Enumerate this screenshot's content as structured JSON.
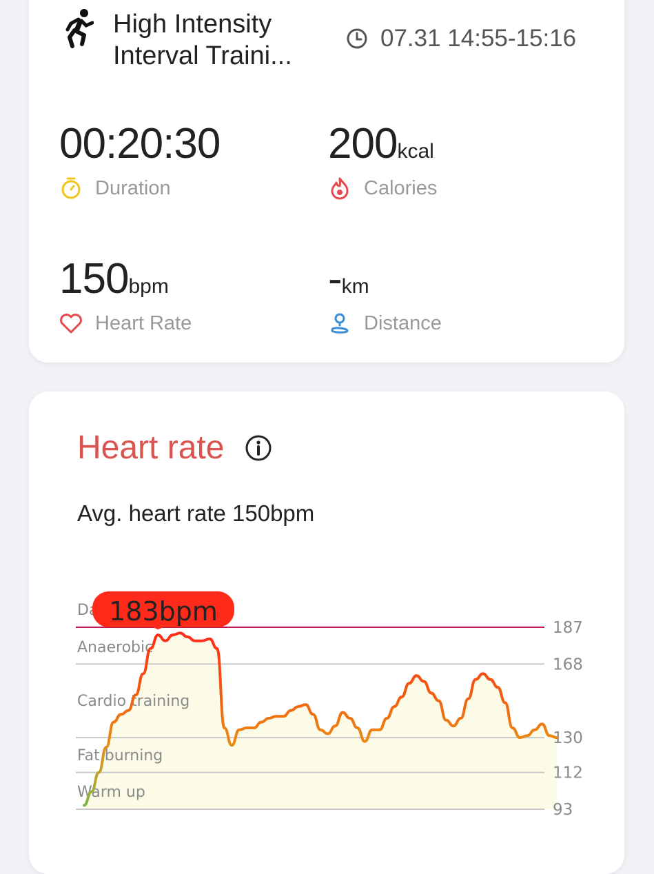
{
  "workout": {
    "icon": "running-person-icon",
    "title": "High Intensity Interval Traini...",
    "time_range": "07.31 14:55-15:16"
  },
  "stats": {
    "duration": {
      "value": "00:20:30",
      "unit": "",
      "label": "Duration"
    },
    "calories": {
      "value": "200",
      "unit": "kcal",
      "label": "Calories"
    },
    "heart_rate": {
      "value": "150",
      "unit": "bpm",
      "label": "Heart Rate"
    },
    "distance": {
      "value": "-",
      "unit": "km",
      "label": "Distance"
    }
  },
  "heart_rate_card": {
    "title": "Heart rate",
    "avg_text": "Avg. heart rate 150bpm",
    "peak_label": "183bpm"
  },
  "colors": {
    "title_red": "#d9534f",
    "danger_line": "#c2185b",
    "bubble": "#ff2a1a",
    "duration_icon": "#f0c419",
    "calories_icon": "#e5484d",
    "heart_icon": "#e5484d",
    "distance_icon": "#3b8ed8"
  },
  "chart_data": {
    "type": "line",
    "ylabel": "",
    "zones": [
      "Dangerous",
      "Anaerobic",
      "Cardio training",
      "Fat burning",
      "Warm up"
    ],
    "y_ticks": [
      187,
      168,
      130,
      112,
      93
    ],
    "ylim": [
      89,
      196
    ],
    "x": [
      0,
      1,
      2,
      3,
      4,
      5,
      6,
      7,
      8,
      9,
      10,
      11,
      12,
      13,
      14,
      15,
      16,
      17,
      18,
      19,
      20,
      21,
      22,
      23,
      24,
      25,
      26,
      27,
      28,
      29,
      30,
      31,
      32,
      33,
      34,
      35,
      36,
      37,
      38,
      39,
      40,
      41,
      42,
      43,
      44,
      45,
      46,
      47,
      48,
      49,
      50,
      51,
      52,
      53,
      54,
      55,
      56,
      57,
      58,
      59,
      60,
      61,
      62,
      63,
      64
    ],
    "values": [
      95,
      102,
      112,
      125,
      138,
      142,
      144,
      152,
      163,
      176,
      183,
      180,
      183,
      184,
      182,
      180,
      180,
      181,
      176,
      135,
      126,
      134,
      135,
      135,
      138,
      140,
      141,
      141,
      144,
      146,
      147,
      142,
      134,
      132,
      136,
      143,
      140,
      135,
      128,
      134,
      134,
      140,
      146,
      151,
      158,
      162,
      159,
      153,
      149,
      139,
      136,
      140,
      150,
      160,
      163,
      160,
      156,
      148,
      135,
      130,
      131,
      134,
      137,
      131,
      130
    ],
    "peak": 183
  }
}
